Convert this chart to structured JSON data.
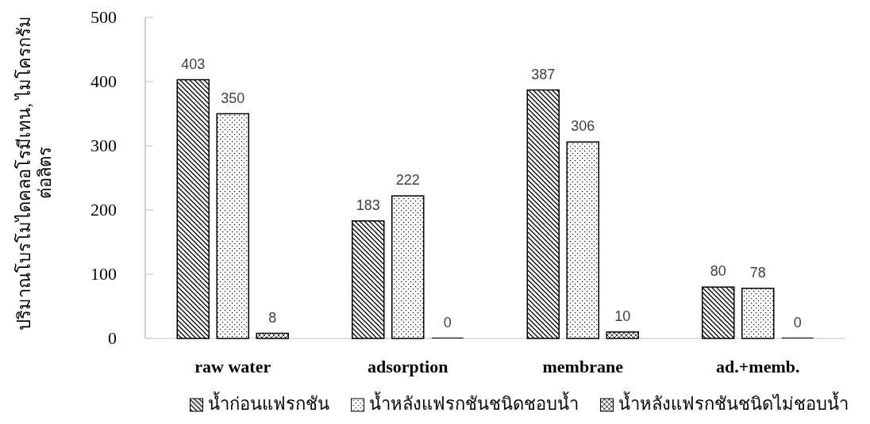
{
  "chart_data": {
    "type": "bar",
    "ylabel": "ปริมาณโบรโมไดคลอโรมีเทน, ไมโครกรัมต่อลิตร",
    "categories": [
      "raw water",
      "adsorption",
      "membrane",
      "ad.+memb."
    ],
    "series": [
      {
        "name": "น้ำก่อนแฟรกชัน",
        "color": "#000000",
        "values": [
          403,
          183,
          387,
          80
        ]
      },
      {
        "name": "น้ำหลังแฟรกชันชนิดชอบน้ำ",
        "color": "#000000",
        "values": [
          350,
          222,
          306,
          78
        ]
      },
      {
        "name": "น้ำหลังแฟรกชันชนิดไม่ชอบน้ำ",
        "color": "#000000",
        "values": [
          8,
          0,
          10,
          0
        ]
      }
    ],
    "ylim": [
      0,
      500
    ],
    "yticks": [
      0,
      100,
      200,
      300,
      400,
      500
    ],
    "data_labels": true,
    "grid": false,
    "legend": "bottom"
  }
}
